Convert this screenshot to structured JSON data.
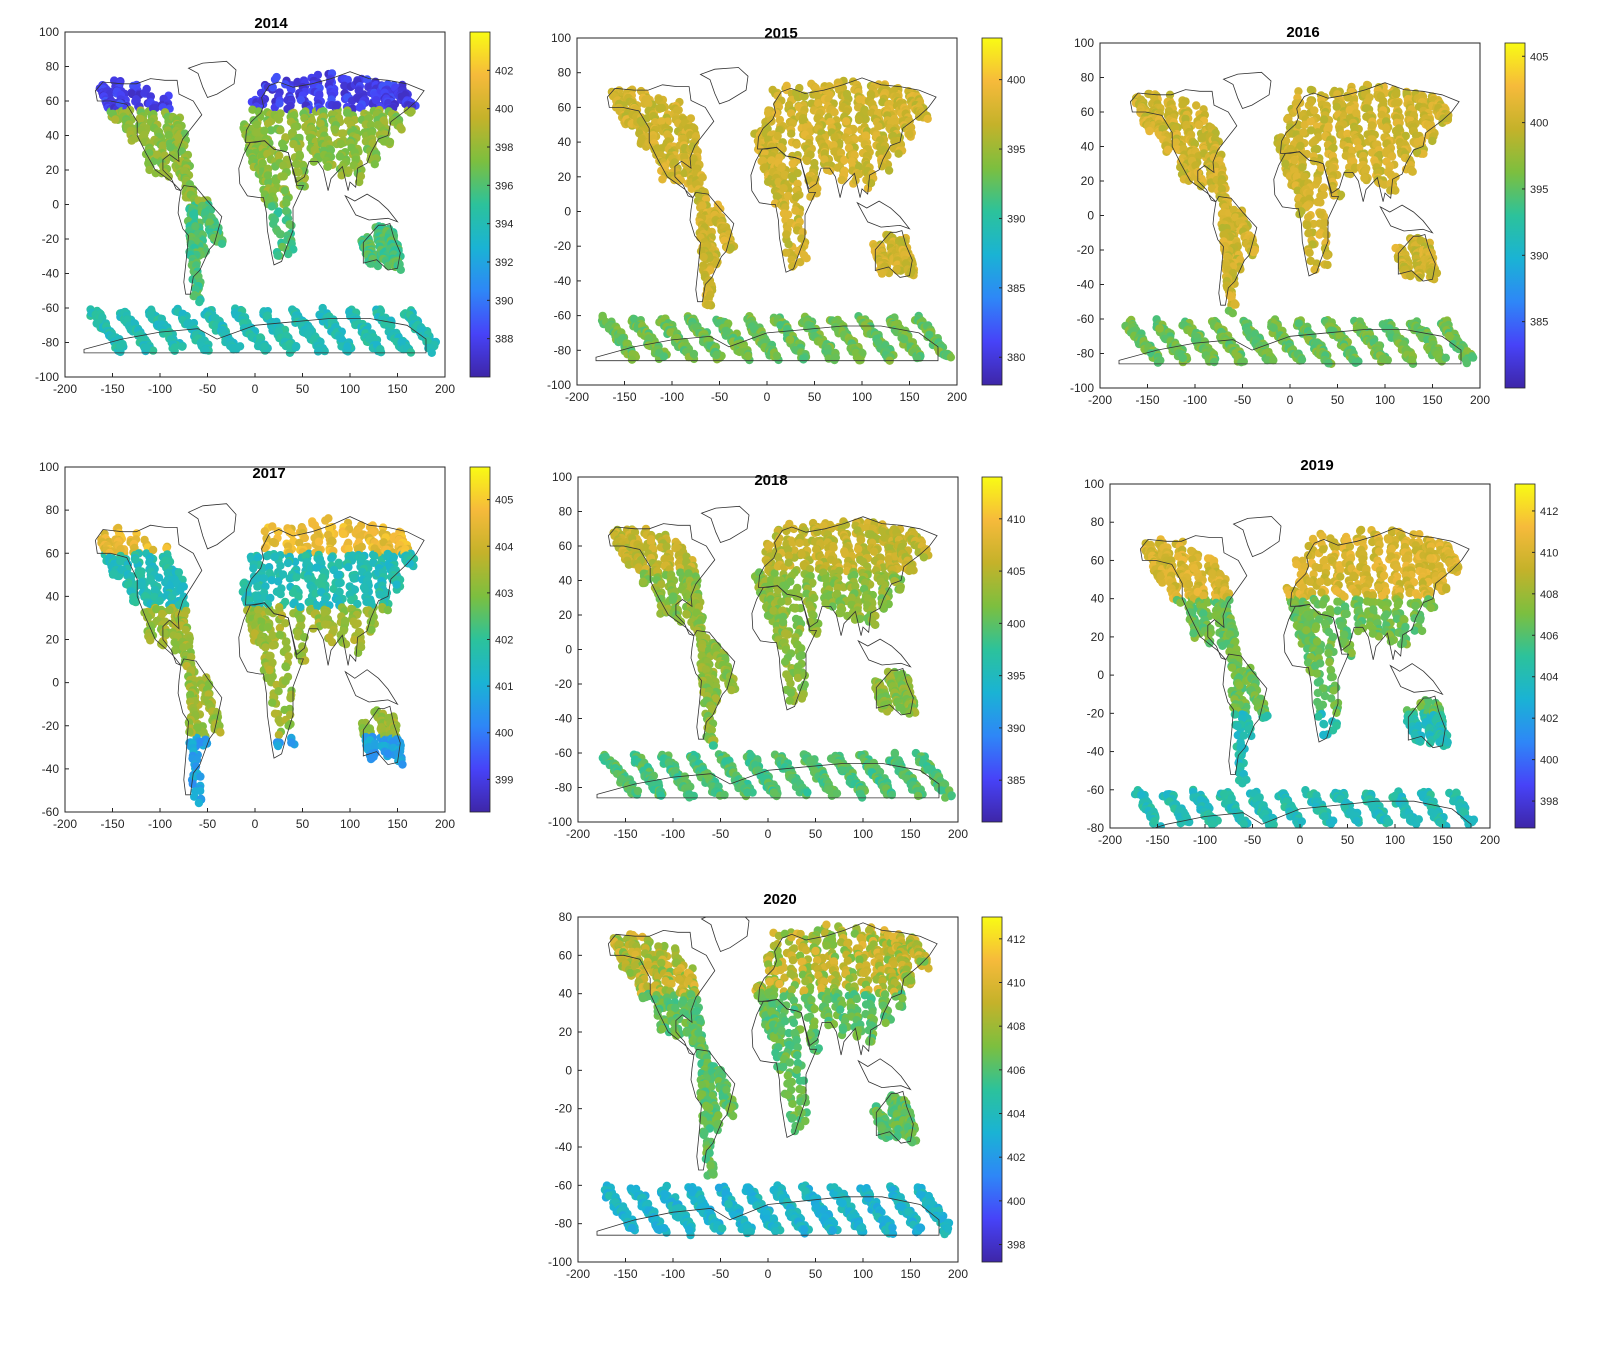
{
  "chart_data": [
    {
      "type": "scatter",
      "title": "2014",
      "xlim": [
        -200,
        200
      ],
      "ylim": [
        -100,
        100
      ],
      "xticks": [
        -200,
        -150,
        -100,
        -50,
        0,
        50,
        100,
        150,
        200
      ],
      "yticks": [
        -100,
        -80,
        -60,
        -40,
        -20,
        0,
        20,
        40,
        60,
        80,
        100
      ],
      "colorbar": {
        "ticks": [
          388,
          390,
          392,
          394,
          396,
          398,
          400,
          402
        ],
        "range": [
          386,
          404
        ]
      },
      "swath_pattern": "north-polar"
    },
    {
      "type": "scatter",
      "title": "2015",
      "xlim": [
        -200,
        200
      ],
      "ylim": [
        -100,
        100
      ],
      "xticks": [
        -200,
        -150,
        -100,
        -50,
        0,
        50,
        100,
        150,
        200
      ],
      "yticks": [
        -100,
        -80,
        -60,
        -40,
        -20,
        0,
        20,
        40,
        60,
        80,
        100
      ],
      "colorbar": {
        "ticks": [
          380,
          385,
          390,
          395,
          400
        ],
        "range": [
          378,
          403
        ]
      },
      "swath_pattern": "uniform-warm"
    },
    {
      "type": "scatter",
      "title": "2016",
      "xlim": [
        -200,
        200
      ],
      "ylim": [
        -100,
        100
      ],
      "xticks": [
        -200,
        -150,
        -100,
        -50,
        0,
        50,
        100,
        150,
        200
      ],
      "yticks": [
        -100,
        -80,
        -60,
        -40,
        -20,
        0,
        20,
        40,
        60,
        80,
        100
      ],
      "colorbar": {
        "ticks": [
          385,
          390,
          395,
          400,
          405
        ],
        "range": [
          380,
          406
        ]
      },
      "swath_pattern": "uniform-warm"
    },
    {
      "type": "scatter",
      "title": "2017",
      "xlim": [
        -200,
        200
      ],
      "ylim": [
        -60,
        100
      ],
      "xticks": [
        -200,
        -150,
        -100,
        -50,
        0,
        50,
        100,
        150,
        200
      ],
      "yticks": [
        -60,
        -40,
        -20,
        0,
        20,
        40,
        60,
        80,
        100
      ],
      "colorbar": {
        "ticks": [
          399,
          400,
          401,
          402,
          403,
          404,
          405
        ],
        "range": [
          398.3,
          405.7
        ]
      },
      "swath_pattern": "latitude-banded"
    },
    {
      "type": "scatter",
      "title": "2018",
      "xlim": [
        -200,
        200
      ],
      "ylim": [
        -100,
        100
      ],
      "xticks": [
        -200,
        -150,
        -100,
        -50,
        0,
        50,
        100,
        150,
        200
      ],
      "yticks": [
        -100,
        -80,
        -60,
        -40,
        -20,
        0,
        20,
        40,
        60,
        80,
        100
      ],
      "colorbar": {
        "ticks": [
          385,
          390,
          395,
          400,
          405,
          410
        ],
        "range": [
          381,
          414
        ]
      },
      "swath_pattern": "mixed"
    },
    {
      "type": "scatter",
      "title": "2019",
      "xlim": [
        -200,
        200
      ],
      "ylim": [
        -80,
        100
      ],
      "xticks": [
        -200,
        -150,
        -100,
        -50,
        0,
        50,
        100,
        150,
        200
      ],
      "yticks": [
        -80,
        -60,
        -40,
        -20,
        0,
        20,
        40,
        60,
        80,
        100
      ],
      "colorbar": {
        "ticks": [
          398,
          400,
          402,
          404,
          406,
          408,
          410,
          412
        ],
        "range": [
          396.7,
          413.3
        ]
      },
      "swath_pattern": "north-high"
    },
    {
      "type": "scatter",
      "title": "2020",
      "xlim": [
        -200,
        200
      ],
      "ylim": [
        -100,
        80
      ],
      "xticks": [
        -200,
        -150,
        -100,
        -50,
        0,
        50,
        100,
        150,
        200
      ],
      "yticks": [
        -100,
        -80,
        -60,
        -40,
        -20,
        0,
        20,
        40,
        60,
        80
      ],
      "colorbar": {
        "ticks": [
          398,
          400,
          402,
          404,
          406,
          408,
          410,
          412
        ],
        "range": [
          397.2,
          413
        ]
      },
      "swath_pattern": "mixed-north"
    }
  ],
  "colormap": [
    "#3e26a8",
    "#4743f8",
    "#2e87f7",
    "#1ab3d4",
    "#2cc29b",
    "#7cbf3f",
    "#c4b22a",
    "#f6ba3b",
    "#f9fb14"
  ]
}
